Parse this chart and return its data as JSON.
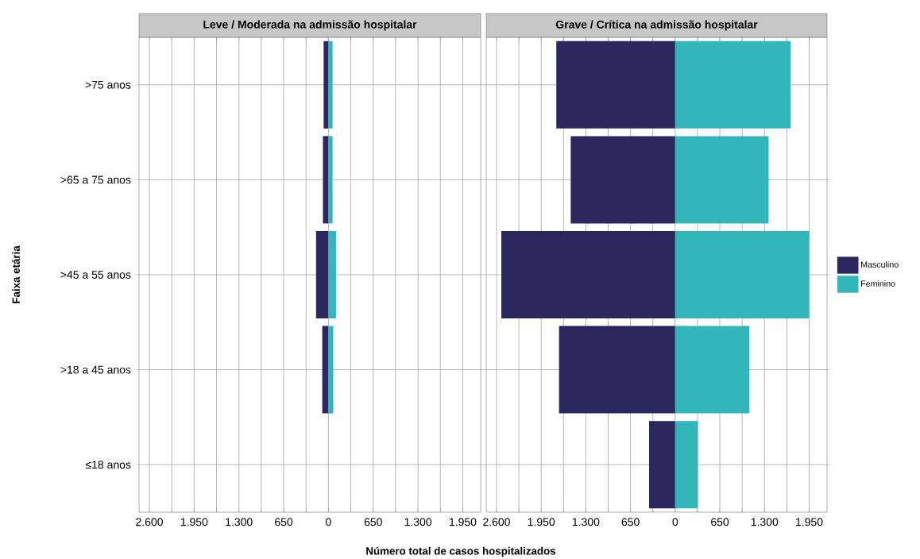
{
  "chart_data": [
    {
      "type": "bar",
      "orientation": "horizontal",
      "stacked": true,
      "title": "Leve / Moderada na admissão hospitalar",
      "ylabel": "Faixa etária",
      "xlabel": "Número total de casos hospitalizados",
      "categories": [
        ">75 anos",
        ">65 a 75 anos",
        ">45 a 55 anos",
        ">18 a 45 anos",
        "≤18 anos"
      ],
      "series": [
        {
          "color": "#2b275e",
          "values": [
            -70,
            -80,
            -180,
            -90,
            null
          ]
        },
        {
          "color": "#33b6ba",
          "values": [
            60,
            60,
            110,
            70,
            null
          ]
        }
      ],
      "xlim": [
        -2750,
        2210
      ],
      "xticks": [
        {
          "value": -2600,
          "label": "2.600"
        },
        {
          "value": -2275,
          "label": null
        },
        {
          "value": -1950,
          "label": "1.950"
        },
        {
          "value": -1625,
          "label": null
        },
        {
          "value": -1300,
          "label": "1.300"
        },
        {
          "value": -975,
          "label": null
        },
        {
          "value": -650,
          "label": "650"
        },
        {
          "value": -325,
          "label": null
        },
        0,
        {
          "value": 325,
          "label": null
        },
        {
          "value": 650,
          "label": "650"
        },
        {
          "value": 975,
          "label": null
        },
        {
          "value": 1300,
          "label": "1.300"
        },
        {
          "value": 1625,
          "label": null
        },
        {
          "value": 1950,
          "label": "1.950"
        }
      ],
      "grid": true,
      "legend": false
    },
    {
      "type": "bar",
      "orientation": "horizontal",
      "stacked": true,
      "title": "Grave / Crítica na admissão hospitalar",
      "series": [
        {
          "name": "Masculino",
          "color": "#2b275e",
          "values": [
            -1730,
            -1520,
            -2530,
            -1690,
            -380
          ]
        },
        {
          "name": "Feminino",
          "color": "#33b6ba",
          "values": [
            1680,
            1360,
            1950,
            1080,
            330
          ]
        }
      ],
      "xlim": [
        -2750,
        2210
      ],
      "xticks": [
        {
          "value": -2600,
          "label": "2.600"
        },
        {
          "value": -2275,
          "label": null
        },
        {
          "value": -1950,
          "label": "1.950"
        },
        {
          "value": -1625,
          "label": null
        },
        {
          "value": -1300,
          "label": "1.300"
        },
        {
          "value": -975,
          "label": null
        },
        {
          "value": -650,
          "label": "650"
        },
        {
          "value": -325,
          "label": null
        },
        0,
        {
          "value": 325,
          "label": null
        },
        {
          "value": 650,
          "label": "650"
        },
        {
          "value": 975,
          "label": null
        },
        {
          "value": 1300,
          "label": "1.300"
        },
        {
          "value": 1625,
          "label": null
        },
        {
          "value": 1950,
          "label": "1.950"
        }
      ],
      "grid": true,
      "legend": "right",
      "tick_labels": "x"
    }
  ]
}
